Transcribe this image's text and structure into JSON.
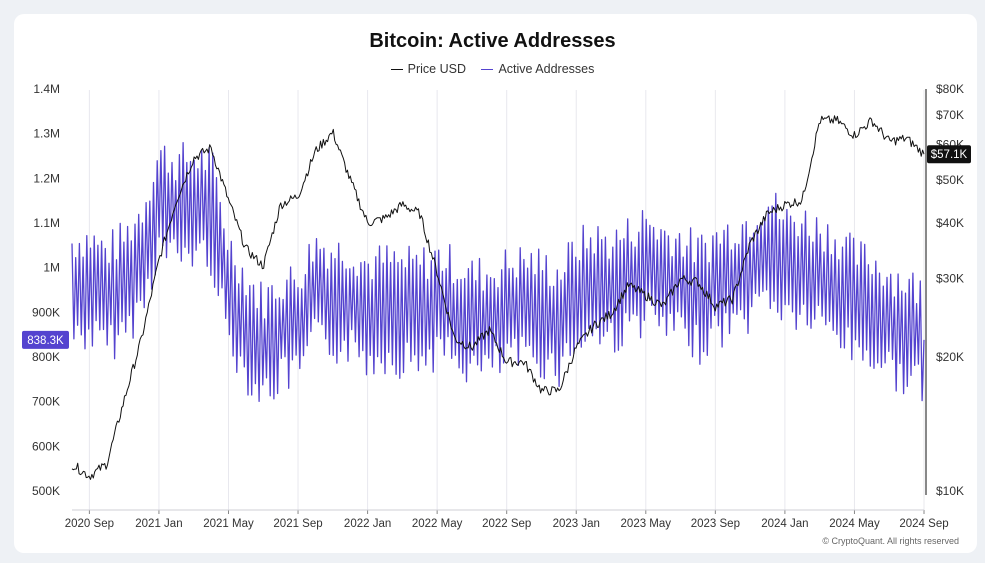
{
  "chart_data": {
    "type": "line",
    "title": "Bitcoin: Active Addresses",
    "legend_position": "top-center",
    "grid": "vertical",
    "x_ticks": [
      "2020 Sep",
      "2021 Jan",
      "2021 May",
      "2021 Sep",
      "2022 Jan",
      "2022 May",
      "2022 Sep",
      "2023 Jan",
      "2023 May",
      "2023 Sep",
      "2024 Jan",
      "2024 May",
      "2024 Sep"
    ],
    "x_range": [
      "2020-08",
      "2024-09"
    ],
    "y_left": {
      "ticks": [
        "500K",
        "600K",
        "700K",
        "800K",
        "900K",
        "1M",
        "1.1M",
        "1.2M",
        "1.3M",
        "1.4M"
      ],
      "range": [
        500000,
        1400000
      ],
      "current_label": "838.3K",
      "current_value": 838300
    },
    "y_right": {
      "scale": "log",
      "ticks": [
        "$10K",
        "$20K",
        "$30K",
        "$40K",
        "$50K",
        "$60K",
        "$70K",
        "$80K"
      ],
      "tick_values": [
        10000,
        20000,
        30000,
        40000,
        50000,
        60000,
        70000,
        80000
      ],
      "range": [
        10000,
        80000
      ],
      "current_label": "$57.1K",
      "current_value": 57100
    },
    "series": [
      {
        "name": "Price USD",
        "color": "#111111",
        "axis": "right",
        "points": [
          [
            "2020-08",
            11500
          ],
          [
            "2020-09",
            10800
          ],
          [
            "2020-10",
            11500
          ],
          [
            "2020-11",
            16000
          ],
          [
            "2020-12",
            22000
          ],
          [
            "2021-01",
            33000
          ],
          [
            "2021-02",
            45000
          ],
          [
            "2021-03",
            56000
          ],
          [
            "2021-04",
            59000
          ],
          [
            "2021-05",
            45000
          ],
          [
            "2021-06",
            35000
          ],
          [
            "2021-07",
            32000
          ],
          [
            "2021-08",
            44000
          ],
          [
            "2021-09",
            46000
          ],
          [
            "2021-10",
            58000
          ],
          [
            "2021-11",
            64000
          ],
          [
            "2021-12",
            50000
          ],
          [
            "2022-01",
            40000
          ],
          [
            "2022-02",
            41000
          ],
          [
            "2022-03",
            44000
          ],
          [
            "2022-04",
            42000
          ],
          [
            "2022-05",
            31000
          ],
          [
            "2022-06",
            22000
          ],
          [
            "2022-07",
            21000
          ],
          [
            "2022-08",
            23000
          ],
          [
            "2022-09",
            19500
          ],
          [
            "2022-10",
            19500
          ],
          [
            "2022-11",
            16800
          ],
          [
            "2022-12",
            16800
          ],
          [
            "2023-01",
            21000
          ],
          [
            "2023-02",
            23500
          ],
          [
            "2023-03",
            25000
          ],
          [
            "2023-04",
            29000
          ],
          [
            "2023-05",
            27500
          ],
          [
            "2023-06",
            26000
          ],
          [
            "2023-07",
            30000
          ],
          [
            "2023-08",
            29500
          ],
          [
            "2023-09",
            26000
          ],
          [
            "2023-10",
            27000
          ],
          [
            "2023-11",
            36000
          ],
          [
            "2023-12",
            42000
          ],
          [
            "2024-01",
            44000
          ],
          [
            "2024-02",
            45000
          ],
          [
            "2024-03",
            68000
          ],
          [
            "2024-04",
            68000
          ],
          [
            "2024-05",
            63000
          ],
          [
            "2024-06",
            68000
          ],
          [
            "2024-07",
            61000
          ],
          [
            "2024-08",
            62000
          ],
          [
            "2024-09",
            57100
          ]
        ]
      },
      {
        "name": "Active Addresses",
        "color": "#5443cf",
        "axis": "left",
        "points": [
          [
            "2020-08",
            950000
          ],
          [
            "2020-09",
            960000
          ],
          [
            "2020-10",
            930000
          ],
          [
            "2020-11",
            960000
          ],
          [
            "2020-12",
            1020000
          ],
          [
            "2021-01",
            1150000
          ],
          [
            "2021-02",
            1130000
          ],
          [
            "2021-03",
            1140000
          ],
          [
            "2021-04",
            1130000
          ],
          [
            "2021-05",
            950000
          ],
          [
            "2021-06",
            870000
          ],
          [
            "2021-07",
            820000
          ],
          [
            "2021-08",
            860000
          ],
          [
            "2021-09",
            870000
          ],
          [
            "2021-10",
            950000
          ],
          [
            "2021-11",
            930000
          ],
          [
            "2021-12",
            930000
          ],
          [
            "2022-01",
            900000
          ],
          [
            "2022-02",
            910000
          ],
          [
            "2022-03",
            900000
          ],
          [
            "2022-04",
            900000
          ],
          [
            "2022-05",
            920000
          ],
          [
            "2022-06",
            900000
          ],
          [
            "2022-07",
            880000
          ],
          [
            "2022-08",
            880000
          ],
          [
            "2022-09",
            900000
          ],
          [
            "2022-10",
            910000
          ],
          [
            "2022-11",
            900000
          ],
          [
            "2022-12",
            880000
          ],
          [
            "2023-01",
            940000
          ],
          [
            "2023-02",
            960000
          ],
          [
            "2023-03",
            950000
          ],
          [
            "2023-04",
            970000
          ],
          [
            "2023-05",
            1000000
          ],
          [
            "2023-06",
            970000
          ],
          [
            "2023-07",
            960000
          ],
          [
            "2023-08",
            930000
          ],
          [
            "2023-09",
            960000
          ],
          [
            "2023-10",
            980000
          ],
          [
            "2023-11",
            1000000
          ],
          [
            "2023-12",
            1050000
          ],
          [
            "2024-01",
            1000000
          ],
          [
            "2024-02",
            1000000
          ],
          [
            "2024-03",
            980000
          ],
          [
            "2024-04",
            960000
          ],
          [
            "2024-05",
            920000
          ],
          [
            "2024-06",
            910000
          ],
          [
            "2024-07",
            880000
          ],
          [
            "2024-08",
            860000
          ],
          [
            "2024-09",
            838300
          ]
        ]
      }
    ]
  },
  "watermark": "© CryptoQuant. All rights reserved",
  "colors": {
    "price_line": "#111111",
    "active_line": "#5443cf",
    "left_badge": "#5443cf",
    "right_badge": "#111111"
  }
}
